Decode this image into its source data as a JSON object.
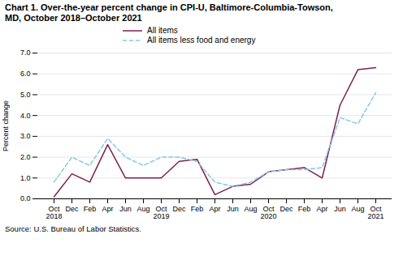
{
  "chart_data": {
    "type": "line",
    "title": "Chart 1. Over-the-year percent change in CPI-U, Baltimore-Columbia-Towson,\nMD, October 2018–October 2021",
    "ylabel": "Percent change",
    "caption": "Source: U.S. Bureau of Labor Statistics.",
    "categories": [
      "Oct\n2018",
      "Dec",
      "Feb",
      "Apr",
      "Jun",
      "Aug",
      "Oct\n2019",
      "Dec",
      "Feb",
      "Apr",
      "Jun",
      "Aug",
      "Oct\n2020",
      "Dec",
      "Feb",
      "Apr",
      "Jun",
      "Aug",
      "Oct\n2021"
    ],
    "series": [
      {
        "name": "All items",
        "color": "#7b2152",
        "line_style": "solid",
        "values": [
          0.1,
          1.2,
          0.8,
          2.6,
          1.0,
          1.0,
          1.0,
          1.8,
          1.9,
          0.2,
          0.6,
          0.7,
          1.3,
          1.4,
          1.5,
          1.0,
          4.5,
          6.2,
          6.3
        ]
      },
      {
        "name": "All items less food and energy",
        "color": "#85c8e8",
        "line_style": "dashed",
        "values": [
          0.8,
          2.0,
          1.6,
          2.9,
          2.0,
          1.6,
          2.0,
          2.0,
          1.8,
          0.8,
          0.6,
          0.8,
          1.3,
          1.4,
          1.4,
          1.5,
          3.9,
          3.6,
          5.1
        ]
      }
    ],
    "ylim": [
      0.0,
      7.0
    ],
    "yticks": [
      {
        "value": 0,
        "label": "0.0"
      },
      {
        "value": 1,
        "label": "1.0"
      },
      {
        "value": 2,
        "label": "2.0"
      },
      {
        "value": 3,
        "label": "3.0"
      },
      {
        "value": 4,
        "label": "4.0"
      },
      {
        "value": 5,
        "label": "5.0"
      },
      {
        "value": 6,
        "label": "6.0"
      },
      {
        "value": 7,
        "label": "7.0"
      }
    ],
    "grid": true,
    "legend": "top"
  }
}
